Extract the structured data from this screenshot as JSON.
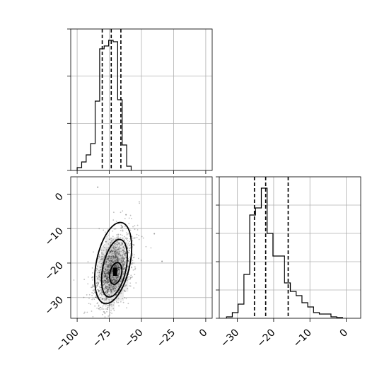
{
  "chart_data": [
    {
      "type": "histogram",
      "panel": "top-left",
      "xlim": [
        -105,
        5
      ],
      "ylim": [
        0,
        1
      ],
      "xticks": [
        -100,
        -75,
        -50,
        -25,
        0
      ],
      "show_xticklabels": false,
      "yticks": [
        0,
        0.3333,
        0.6667,
        1
      ],
      "show_yticklabels": false,
      "grid": true,
      "bins": [
        {
          "x0": -100.0,
          "x1": -96.5,
          "count": 0.02
        },
        {
          "x0": -96.5,
          "x1": -93.0,
          "count": 0.06
        },
        {
          "x0": -93.0,
          "x1": -89.5,
          "count": 0.11
        },
        {
          "x0": -89.5,
          "x1": -86.0,
          "count": 0.19
        },
        {
          "x0": -86.0,
          "x1": -82.5,
          "count": 0.49
        },
        {
          "x0": -82.5,
          "x1": -79.0,
          "count": 0.86
        },
        {
          "x0": -79.0,
          "x1": -75.5,
          "count": 0.88
        },
        {
          "x0": -75.5,
          "x1": -72.0,
          "count": 0.92
        },
        {
          "x0": -72.0,
          "x1": -68.5,
          "count": 0.91
        },
        {
          "x0": -68.5,
          "x1": -65.0,
          "count": 0.5
        },
        {
          "x0": -65.0,
          "x1": -61.5,
          "count": 0.18
        },
        {
          "x0": -61.5,
          "x1": -58.0,
          "count": 0.03
        }
      ],
      "quantiles": [
        -80.5,
        -73.5,
        -66.0
      ]
    },
    {
      "type": "scatter",
      "panel": "bottom-left",
      "xlim": [
        -105,
        5
      ],
      "ylim": [
        -36,
        5
      ],
      "xticks": [
        -100,
        -75,
        -50,
        -25,
        0
      ],
      "xticklabels": [
        "−100",
        "−75",
        "−50",
        "−25",
        "0"
      ],
      "yticks": [
        0,
        -10,
        -20,
        -30
      ],
      "yticklabels": [
        "0",
        "−10",
        "−20",
        "−30"
      ],
      "grid": true,
      "density_center": [
        -72,
        -22
      ],
      "density_peak": [
        -70.5,
        -22.5
      ],
      "contours": [
        {
          "level": "inner",
          "center": [
            -70,
            -23
          ],
          "rx": 4.5,
          "ry": 3.2
        },
        {
          "level": "middle",
          "center": [
            -71,
            -21.5
          ],
          "rx": 9,
          "ry": 8.5
        },
        {
          "level": "outer",
          "center": [
            -72,
            -20
          ],
          "rx": 13,
          "ry": 12
        }
      ],
      "outliers": [
        [
          -34,
          -19.5
        ],
        [
          -40,
          -11.5
        ],
        [
          -84,
          2
        ],
        [
          -62,
          -6
        ]
      ]
    },
    {
      "type": "histogram",
      "panel": "bottom-right",
      "xlim": [
        -35,
        4
      ],
      "ylim": [
        0,
        1
      ],
      "xticks": [
        -30,
        -20,
        -10,
        0
      ],
      "xticklabels": [
        "−30",
        "−20",
        "−10",
        "0"
      ],
      "yticks": [
        0,
        0.2,
        0.4,
        0.6,
        0.8,
        1
      ],
      "show_yticklabels": false,
      "grid": true,
      "bins": [
        {
          "x0": -33.0,
          "x1": -31.4,
          "count": 0.01
        },
        {
          "x0": -31.4,
          "x1": -29.8,
          "count": 0.04
        },
        {
          "x0": -29.8,
          "x1": -28.2,
          "count": 0.1
        },
        {
          "x0": -28.2,
          "x1": -26.6,
          "count": 0.31
        },
        {
          "x0": -26.6,
          "x1": -25.0,
          "count": 0.73
        },
        {
          "x0": -25.0,
          "x1": -23.4,
          "count": 0.78
        },
        {
          "x0": -23.4,
          "x1": -21.8,
          "count": 0.92
        },
        {
          "x0": -21.8,
          "x1": -20.2,
          "count": 0.6
        },
        {
          "x0": -20.2,
          "x1": -18.6,
          "count": 0.44
        },
        {
          "x0": -18.6,
          "x1": -17.0,
          "count": 0.44
        },
        {
          "x0": -17.0,
          "x1": -15.4,
          "count": 0.25
        },
        {
          "x0": -15.4,
          "x1": -13.8,
          "count": 0.19
        },
        {
          "x0": -13.8,
          "x1": -12.2,
          "count": 0.16
        },
        {
          "x0": -12.2,
          "x1": -10.6,
          "count": 0.11
        },
        {
          "x0": -10.6,
          "x1": -9.0,
          "count": 0.08
        },
        {
          "x0": -9.0,
          "x1": -7.4,
          "count": 0.04
        },
        {
          "x0": -7.4,
          "x1": -5.8,
          "count": 0.03
        },
        {
          "x0": -5.8,
          "x1": -4.2,
          "count": 0.03
        },
        {
          "x0": -4.2,
          "x1": -2.6,
          "count": 0.01
        },
        {
          "x0": -2.6,
          "x1": -1.0,
          "count": 0.005
        }
      ],
      "quantiles": [
        -25.3,
        -22.2,
        -16.0
      ]
    }
  ]
}
